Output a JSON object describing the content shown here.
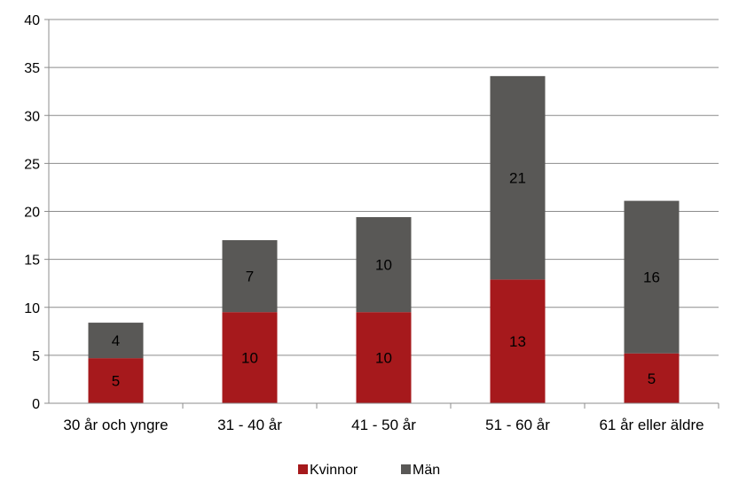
{
  "chart_data": {
    "type": "bar",
    "stacked": true,
    "categories": [
      "30 år och yngre",
      "31 - 40 år",
      "41 - 50 år",
      "51 - 60 år",
      "61 år eller äldre"
    ],
    "series": [
      {
        "name": "Kvinnor",
        "values": [
          5,
          10,
          10,
          13,
          5
        ],
        "display_labels": [
          "5",
          "10",
          "10",
          "13",
          "5"
        ],
        "plotted": [
          4.7,
          9.5,
          9.5,
          12.9,
          5.2
        ],
        "color": "#a6191c"
      },
      {
        "name": "Män",
        "values": [
          4,
          7,
          10,
          21,
          16
        ],
        "display_labels": [
          "4",
          "7",
          "10",
          "21",
          "16"
        ],
        "plotted": [
          3.7,
          7.5,
          9.9,
          21.2,
          15.9
        ],
        "color": "#595856"
      }
    ],
    "ylim": [
      0,
      40
    ],
    "yticks": [
      "0",
      "5",
      "10",
      "15",
      "20",
      "25",
      "30",
      "35",
      "40"
    ],
    "grid": true,
    "legend": "bottom-center",
    "title": "",
    "xlabel": "",
    "ylabel": ""
  }
}
